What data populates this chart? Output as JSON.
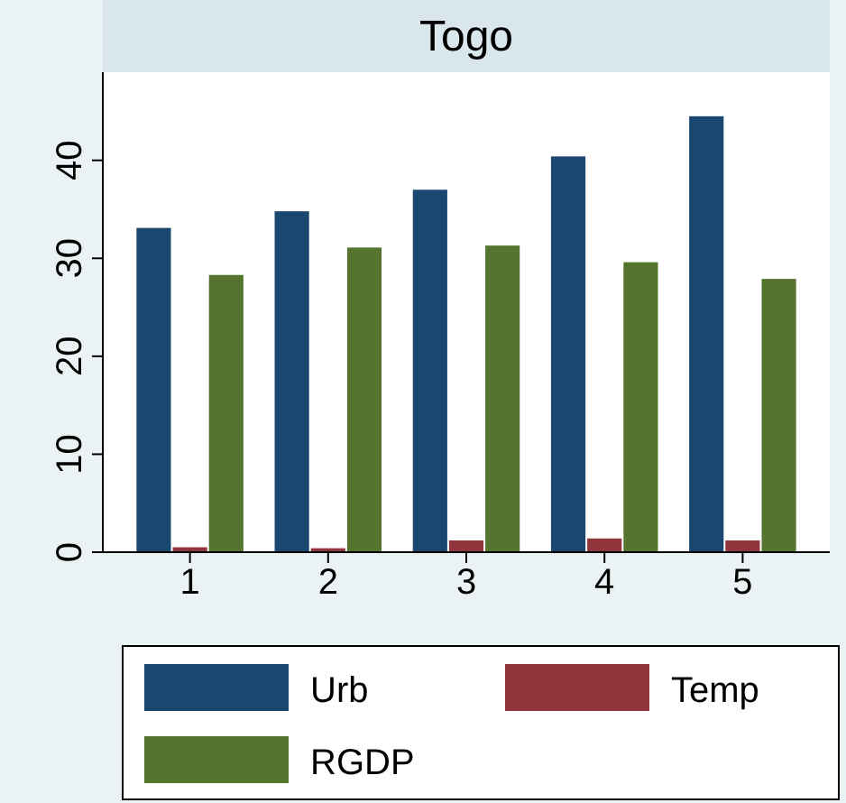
{
  "chart_data": {
    "type": "bar",
    "title": "Togo",
    "categories": [
      "1",
      "2",
      "3",
      "4",
      "5"
    ],
    "series": [
      {
        "name": "Urb",
        "color": "#1a476f",
        "values": [
          33.1,
          34.8,
          37.0,
          40.4,
          44.5
        ]
      },
      {
        "name": "Temp",
        "color": "#90353b",
        "values": [
          0.5,
          0.4,
          1.2,
          1.4,
          1.2
        ]
      },
      {
        "name": "RGDP",
        "color": "#55752f",
        "values": [
          28.3,
          31.1,
          31.3,
          29.6,
          27.9
        ]
      }
    ],
    "ylim": [
      0,
      49
    ],
    "yticks": [
      0,
      10,
      20,
      30,
      40
    ],
    "grid": false,
    "legend": "bottom"
  }
}
